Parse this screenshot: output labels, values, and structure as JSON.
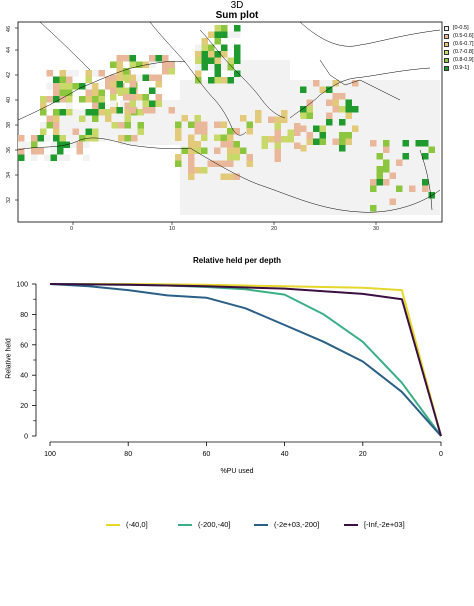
{
  "map": {
    "title_line1": "3D",
    "title_line2": "Sum plot",
    "x_ticks": [
      "0",
      "10",
      "20",
      "30"
    ],
    "y_ticks": [
      "32",
      "34",
      "36",
      "38",
      "40",
      "42",
      "44",
      "46"
    ],
    "legend": [
      {
        "label": "[0-0.5]",
        "color": "#f2f2f2"
      },
      {
        "label": "(0.5-0.6]",
        "color": "#e9b89b"
      },
      {
        "label": "(0.6-0.7]",
        "color": "#e3c97a"
      },
      {
        "label": "(0.7-0.8]",
        "color": "#c8d96a"
      },
      {
        "label": "(0.8-0.9]",
        "color": "#8cc63f"
      },
      {
        "label": "(0.9-1]",
        "color": "#1f9a2e"
      }
    ]
  },
  "chart_data": {
    "type": "line",
    "title": "Relative held per depth",
    "xlabel": "%PU used",
    "ylabel": "Relative held",
    "xlim": [
      100,
      0
    ],
    "ylim": [
      0,
      100
    ],
    "x_ticks": [
      "100",
      "80",
      "60",
      "40",
      "20",
      "0"
    ],
    "y_ticks": [
      "0",
      "20",
      "40",
      "60",
      "80",
      "100"
    ],
    "series": [
      {
        "name": "(-40,0]",
        "color": "#e6d72a",
        "x": [
          100,
          80,
          60,
          40,
          20,
          10,
          0
        ],
        "y": [
          100,
          100,
          99.5,
          98.5,
          97.5,
          96,
          0
        ]
      },
      {
        "name": "(-200,-40]",
        "color": "#3aaf85",
        "x": [
          100,
          80,
          70,
          60,
          50,
          40,
          30,
          20,
          10,
          0
        ],
        "y": [
          100,
          99.5,
          99,
          98,
          96.5,
          93,
          80,
          62,
          35,
          0
        ]
      },
      {
        "name": "(-2e+03,-200]",
        "color": "#2a5f86",
        "x": [
          100,
          90,
          80,
          70,
          60,
          50,
          40,
          30,
          20,
          10,
          0
        ],
        "y": [
          100,
          98.5,
          96,
          92.5,
          91,
          84,
          73,
          62,
          49,
          29,
          0
        ]
      },
      {
        "name": "[-Inf,-2e+03]",
        "color": "#3b0f42",
        "x": [
          100,
          80,
          60,
          40,
          20,
          10,
          0
        ],
        "y": [
          100,
          99.5,
          98.5,
          97,
          93.5,
          90,
          0
        ]
      }
    ]
  }
}
